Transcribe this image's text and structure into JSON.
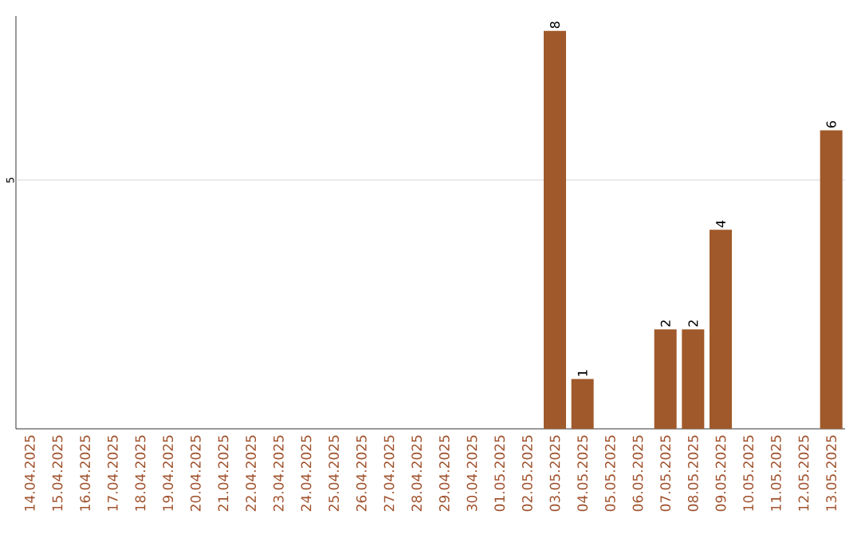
{
  "chart_data": {
    "type": "bar",
    "ylim": [
      0,
      8.3
    ],
    "categories": [
      "14.04.2025",
      "15.04.2025",
      "16.04.2025",
      "17.04.2025",
      "18.04.2025",
      "19.04.2025",
      "20.04.2025",
      "21.04.2025",
      "22.04.2025",
      "23.04.2025",
      "24.04.2025",
      "25.04.2025",
      "26.04.2025",
      "27.04.2025",
      "28.04.2025",
      "29.04.2025",
      "30.04.2025",
      "01.05.2025",
      "02.05.2025",
      "03.05.2025",
      "04.05.2025",
      "05.05.2025",
      "06.05.2025",
      "07.05.2025",
      "08.05.2025",
      "09.05.2025",
      "10.05.2025",
      "11.05.2025",
      "12.05.2025",
      "13.05.2025"
    ],
    "values": [
      null,
      null,
      null,
      null,
      null,
      null,
      null,
      null,
      null,
      null,
      null,
      null,
      null,
      null,
      null,
      null,
      null,
      null,
      null,
      8,
      1,
      null,
      null,
      2,
      2,
      4,
      null,
      null,
      null,
      6
    ],
    "data_labels": true,
    "color": "#a0592a",
    "ref_lines": [
      {
        "axis": "y",
        "value": 5,
        "label": "5",
        "color": "#cccccc"
      }
    ]
  }
}
